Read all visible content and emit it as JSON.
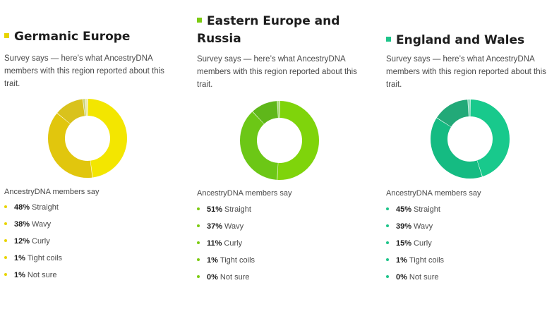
{
  "regions": [
    {
      "title": "Germanic Europe",
      "accent": "#e8d400",
      "donut_colors": [
        "#f3e600",
        "#e1c60d",
        "#d9c21c",
        "#c9d27a",
        "#ece9b0"
      ],
      "description": "Survey says — here’s what AncestryDNA members with this region reported about this trait.",
      "say_label": "AncestryDNA members say",
      "stats": [
        {
          "pct": "48%",
          "label": "Straight",
          "value": 48
        },
        {
          "pct": "38%",
          "label": "Wavy",
          "value": 38
        },
        {
          "pct": "12%",
          "label": "Curly",
          "value": 12
        },
        {
          "pct": "1%",
          "label": "Tight coils",
          "value": 1
        },
        {
          "pct": "1%",
          "label": "Not sure",
          "value": 1
        }
      ]
    },
    {
      "title": "Eastern Europe and Russia",
      "accent": "#7ccb12",
      "donut_colors": [
        "#7fd40b",
        "#6cc716",
        "#5fb71a",
        "#a6dd75",
        "#d5efbb"
      ],
      "description": "Survey says — here’s what AncestryDNA members with this region reported about this trait.",
      "say_label": "AncestryDNA members say",
      "stats": [
        {
          "pct": "51%",
          "label": "Straight",
          "value": 51
        },
        {
          "pct": "37%",
          "label": "Wavy",
          "value": 37
        },
        {
          "pct": "11%",
          "label": "Curly",
          "value": 11
        },
        {
          "pct": "1%",
          "label": "Tight coils",
          "value": 1
        },
        {
          "pct": "0%",
          "label": "Not sure",
          "value": 0
        }
      ]
    },
    {
      "title": "England and Wales",
      "accent": "#1ec48a",
      "donut_colors": [
        "#18c98c",
        "#15bb82",
        "#22a978",
        "#7dd8b6",
        "#c5eedd"
      ],
      "description": "Survey says — here’s what AncestryDNA members with this region reported about this trait.",
      "say_label": "AncestryDNA members say",
      "stats": [
        {
          "pct": "45%",
          "label": "Straight",
          "value": 45
        },
        {
          "pct": "39%",
          "label": "Wavy",
          "value": 39
        },
        {
          "pct": "15%",
          "label": "Curly",
          "value": 15
        },
        {
          "pct": "1%",
          "label": "Tight coils",
          "value": 1
        },
        {
          "pct": "0%",
          "label": "Not sure",
          "value": 0
        }
      ]
    }
  ]
}
